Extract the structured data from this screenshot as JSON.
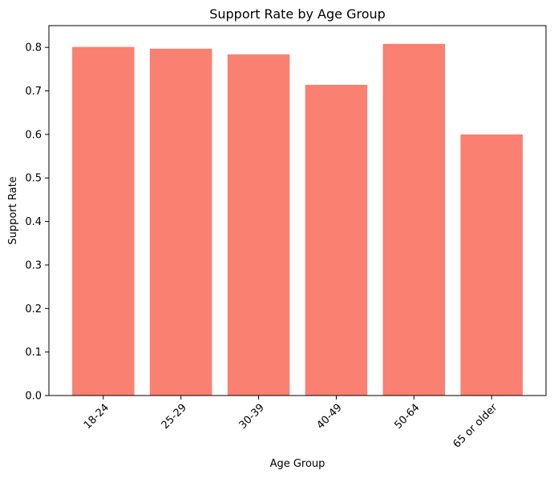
{
  "chart_data": {
    "type": "bar",
    "title": "Support Rate by Age Group",
    "xlabel": "Age Group",
    "ylabel": "Support Rate",
    "categories": [
      "18-24",
      "25-29",
      "30-39",
      "40-49",
      "50-64",
      "65 or older"
    ],
    "values": [
      0.801,
      0.797,
      0.784,
      0.714,
      0.808,
      0.6
    ],
    "ylim": [
      0,
      0.85
    ],
    "yticks": [
      "0.0",
      "0.1",
      "0.2",
      "0.3",
      "0.4",
      "0.5",
      "0.6",
      "0.7",
      "0.8"
    ],
    "grid": false,
    "bar_color": "#fa8072",
    "xtick_rotation_deg": 45
  }
}
